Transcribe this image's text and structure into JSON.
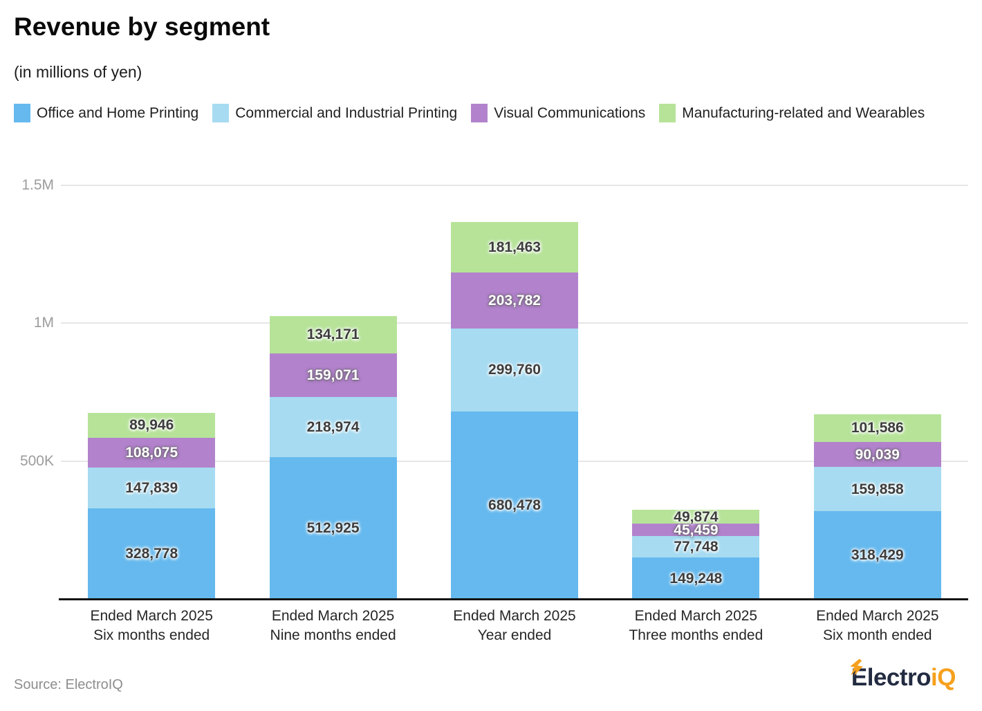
{
  "header": {
    "title": "Revenue by segment",
    "subtitle": "(in millions of yen)"
  },
  "chart_data": {
    "type": "bar",
    "stacked": true,
    "title": "Revenue by segment",
    "subtitle": "(in millions of yen)",
    "legend_position": "top",
    "grid": "horizontal",
    "y_axis": {
      "min": 0,
      "max": 1500000,
      "ticks": [
        {
          "value": 500000,
          "label": "500K"
        },
        {
          "value": 1000000,
          "label": "1M"
        },
        {
          "value": 1500000,
          "label": "1.5M"
        }
      ]
    },
    "categories": [
      {
        "line1": "Ended March 2025",
        "line2": "Six months ended"
      },
      {
        "line1": "Ended March 2025",
        "line2": "Nine months ended"
      },
      {
        "line1": "Ended March 2025",
        "line2": "Year ended"
      },
      {
        "line1": "Ended March 2025",
        "line2": "Three months ended"
      },
      {
        "line1": "Ended March 2025",
        "line2": "Six month ended"
      }
    ],
    "series": [
      {
        "name": "Office and Home Printing",
        "color": "#65b9ee",
        "label_style": "dark",
        "values": [
          328778,
          512925,
          680478,
          149248,
          318429
        ]
      },
      {
        "name": "Commercial and Industrial Printing",
        "color": "#a6dbf1",
        "label_style": "dark",
        "values": [
          147839,
          218974,
          299760,
          77748,
          159858
        ]
      },
      {
        "name": "Visual Communications",
        "color": "#b283cc",
        "label_style": "light",
        "values": [
          108075,
          159071,
          203782,
          45459,
          90039
        ]
      },
      {
        "name": "Manufacturing-related and Wearables",
        "color": "#b7e399",
        "label_style": "dark",
        "values": [
          89946,
          134171,
          181463,
          49874,
          101586
        ]
      }
    ]
  },
  "footer": {
    "source": "Source: ElectroIQ",
    "logo": {
      "text_primary": "Electro",
      "text_accent": "iQ",
      "color_primary": "#232b41",
      "color_accent": "#f6a01e"
    }
  }
}
